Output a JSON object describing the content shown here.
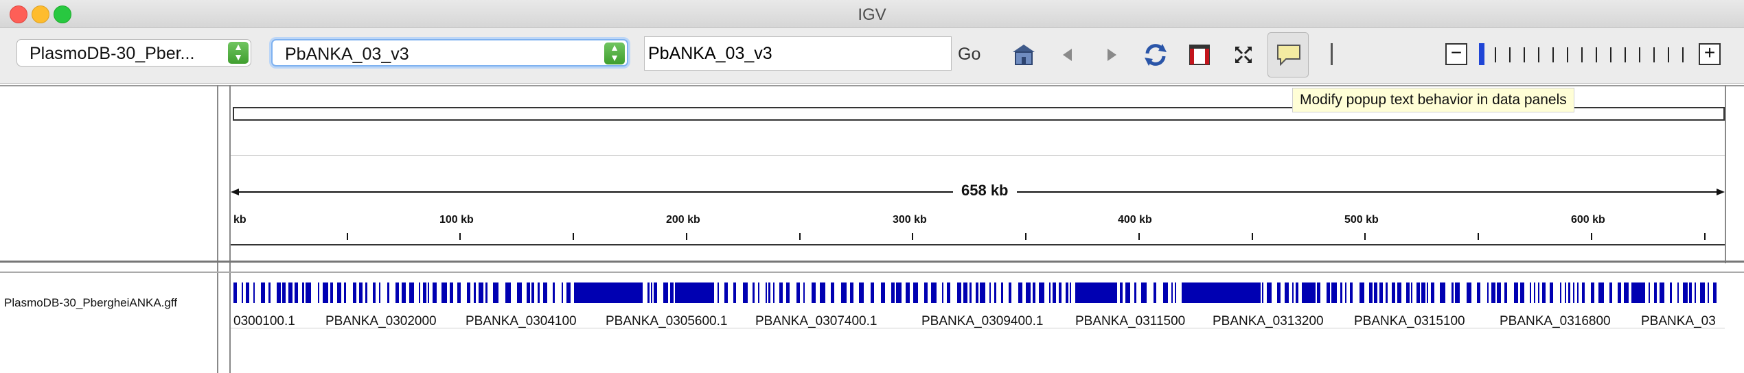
{
  "window": {
    "title": "IGV"
  },
  "toolbar": {
    "genome": "PlasmoDB-30_Pber...",
    "chromosome": "PbANKA_03_v3",
    "locus": "PbANKA_03_v3",
    "go_label": "Go",
    "tooltip": "Modify popup text behavior in data panels"
  },
  "icons": [
    "home-icon",
    "back-icon",
    "forward-icon",
    "refresh-icon",
    "roi-icon",
    "resize-icon",
    "popup-icon"
  ],
  "ruler": {
    "span": "658 kb",
    "start_label": "kb",
    "ticks": [
      "100 kb",
      "200 kb",
      "300 kb",
      "400 kb",
      "500 kb",
      "600 kb"
    ]
  },
  "track": {
    "name": "PlasmoDB-30_PbergheiANKA.gff",
    "feature_color": "#0000b2",
    "gene_labels": [
      "0300100.1",
      "PBANKA_0302000",
      "PBANKA_0304100",
      "PBANKA_0305600.1",
      "PBANKA_0307400.1",
      "PBANKA_0309400.1",
      "PBANKA_0311500",
      "PBANKA_0313200",
      "PBANKA_0315100",
      "PBANKA_0316800",
      "PBANKA_03"
    ]
  }
}
